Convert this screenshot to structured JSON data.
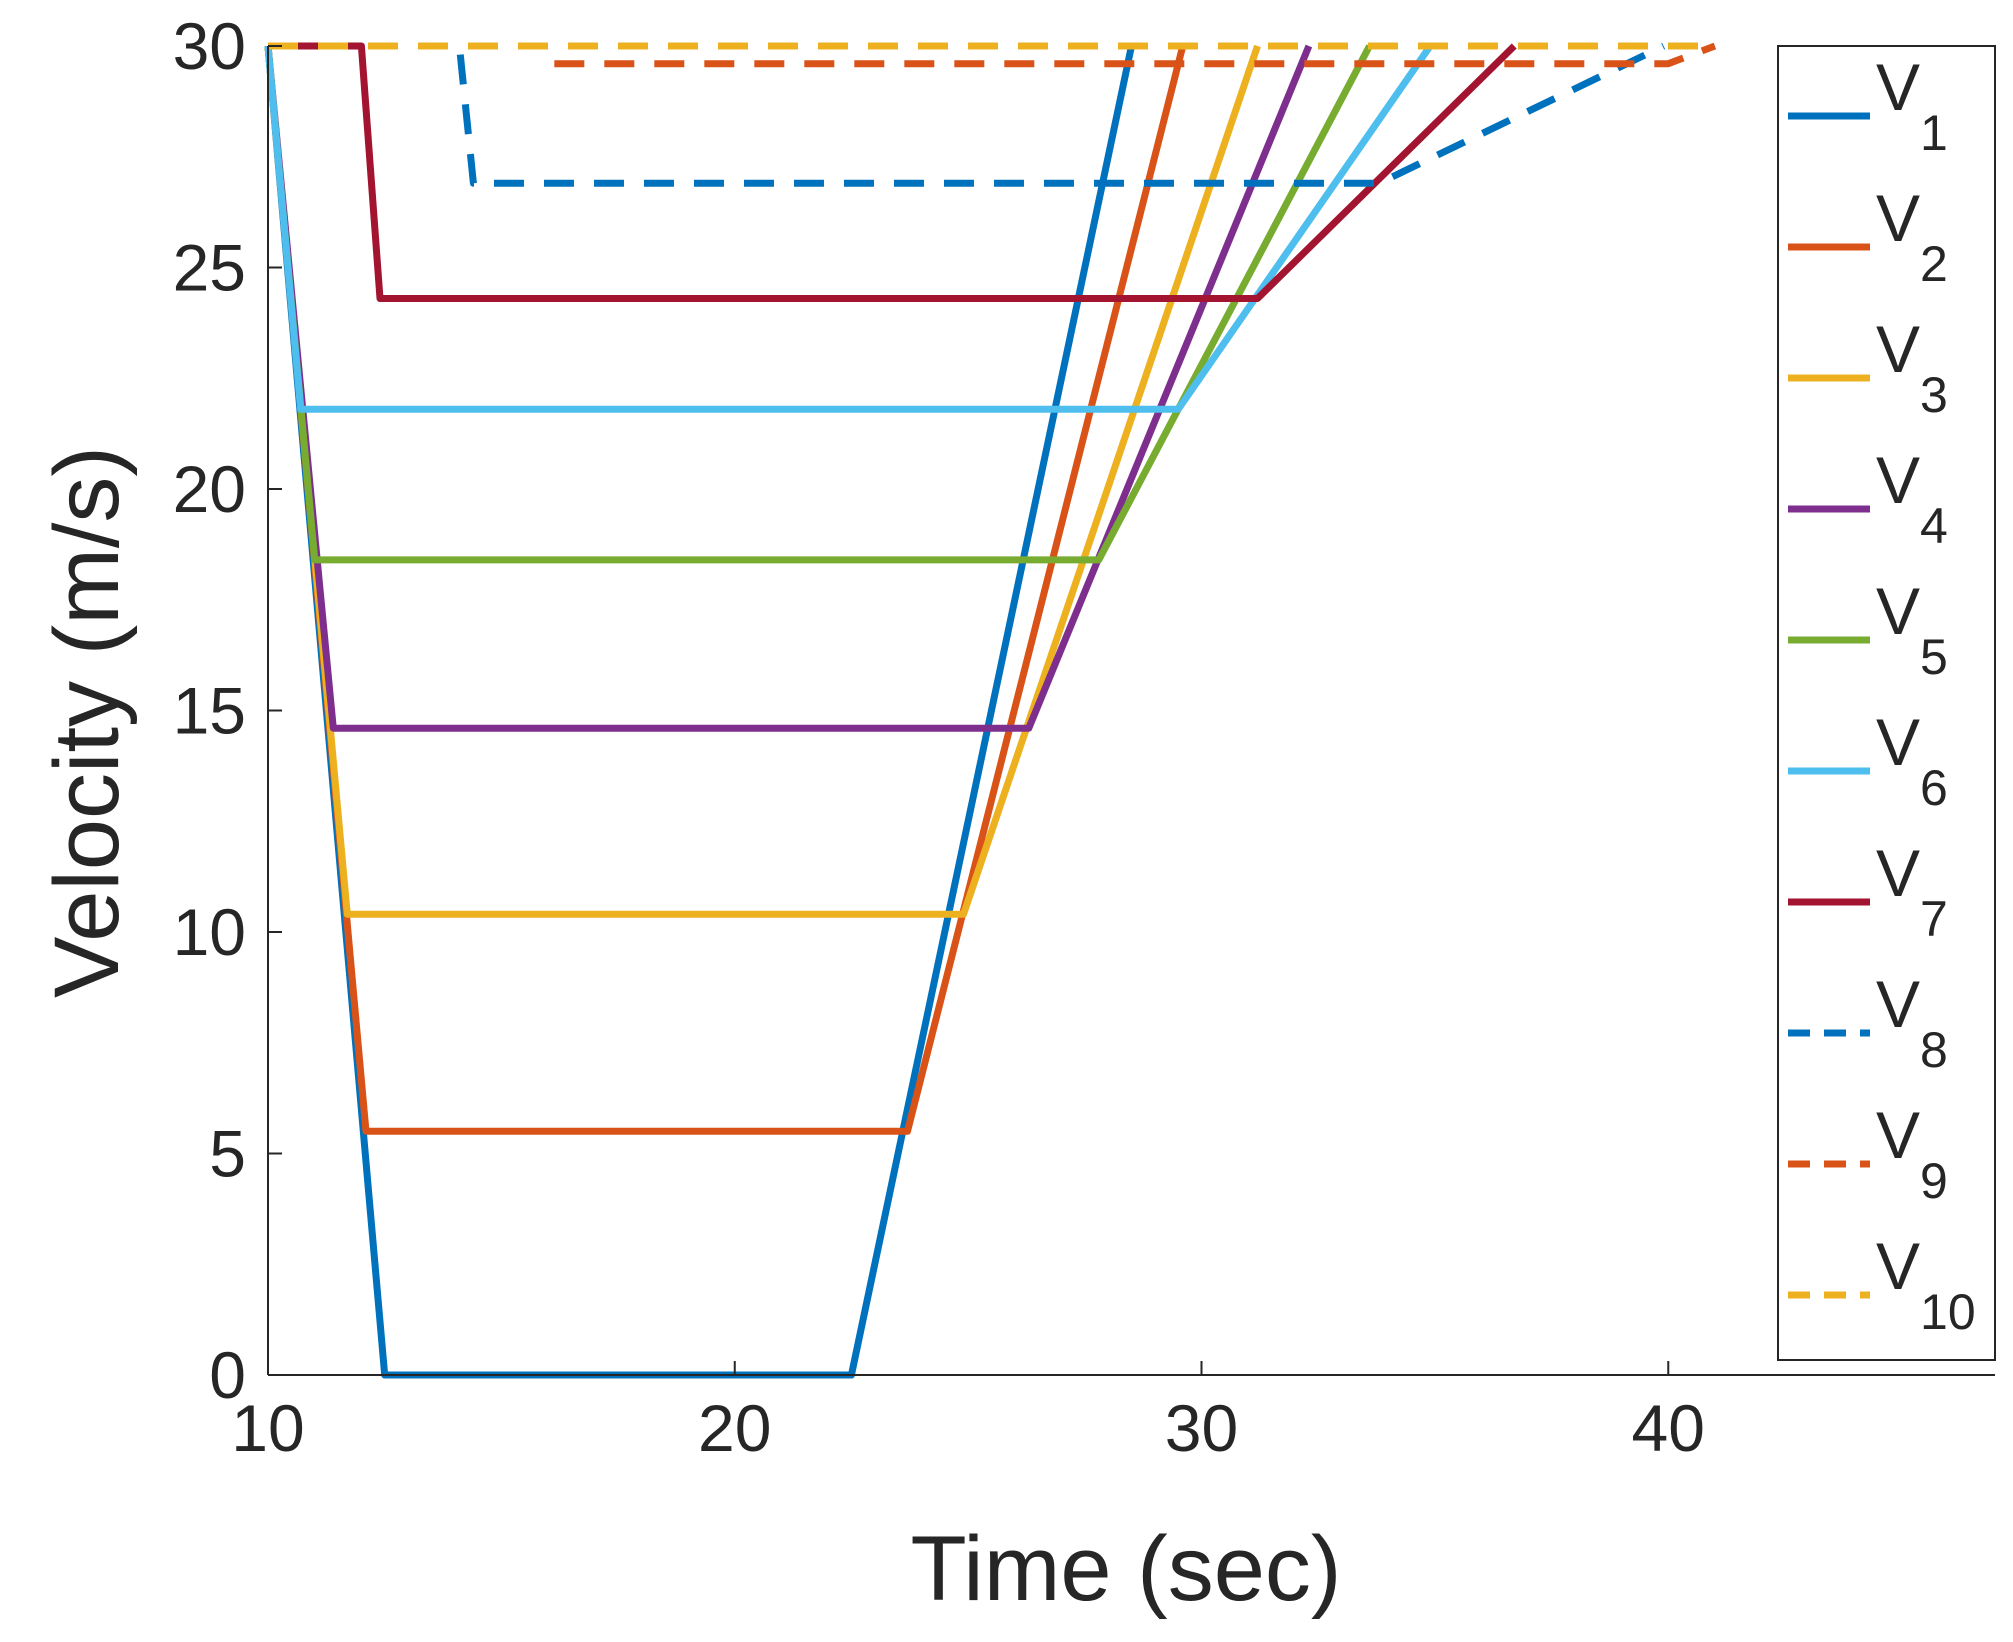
{
  "chart_data": {
    "type": "line",
    "title": "",
    "xlabel": "Time (sec)",
    "ylabel": "Velocity (m/s)",
    "xlim": [
      10,
      47
    ],
    "ylim": [
      0,
      30
    ],
    "xticks": [
      10,
      20,
      30,
      40
    ],
    "yticks": [
      0,
      5,
      10,
      15,
      20,
      25,
      30
    ],
    "legend_location": "top-right",
    "series": [
      {
        "name": "V",
        "sub": "1",
        "color": "#0072BD",
        "dashed": false,
        "x": [
          10,
          12.5,
          22.5,
          28.5
        ],
        "y": [
          30,
          0,
          0,
          30
        ]
      },
      {
        "name": "V",
        "sub": "2",
        "color": "#D95319",
        "dashed": false,
        "x": [
          10,
          12.1,
          23.7,
          29.6
        ],
        "y": [
          30,
          5.5,
          5.5,
          30
        ]
      },
      {
        "name": "V",
        "sub": "3",
        "color": "#EDB120",
        "dashed": false,
        "x": [
          10,
          11.7,
          24.9,
          31.2
        ],
        "y": [
          30,
          10.4,
          10.4,
          30
        ]
      },
      {
        "name": "V",
        "sub": "4",
        "color": "#7E2F8E",
        "dashed": false,
        "x": [
          10,
          11.4,
          26.3,
          32.3
        ],
        "y": [
          30,
          14.6,
          14.6,
          30
        ]
      },
      {
        "name": "V",
        "sub": "5",
        "color": "#77AC30",
        "dashed": false,
        "x": [
          10,
          11.0,
          27.8,
          33.6
        ],
        "y": [
          30,
          18.4,
          18.4,
          30
        ]
      },
      {
        "name": "V",
        "sub": "6",
        "color": "#4DBEEE",
        "dashed": false,
        "x": [
          10,
          10.7,
          29.5,
          34.9
        ],
        "y": [
          30,
          21.8,
          21.8,
          30
        ]
      },
      {
        "name": "V",
        "sub": "7",
        "color": "#A2142F",
        "dashed": false,
        "x": [
          10,
          12.0,
          12.4,
          31.2,
          36.7
        ],
        "y": [
          30,
          30,
          24.3,
          24.3,
          30
        ]
      },
      {
        "name": "V",
        "sub": "8",
        "color": "#0072BD",
        "dashed": true,
        "x": [
          10,
          14.1,
          14.4,
          33.8,
          39.9
        ],
        "y": [
          30,
          30,
          26.9,
          26.9,
          30
        ]
      },
      {
        "name": "V",
        "sub": "9",
        "color": "#D95319",
        "dashed": true,
        "x": [
          10,
          16.0,
          16.1,
          40.0,
          41.0
        ],
        "y": [
          30,
          30,
          29.6,
          29.6,
          30
        ]
      },
      {
        "name": "V",
        "sub": "10",
        "color": "#EDB120",
        "dashed": true,
        "x": [
          10,
          41.0
        ],
        "y": [
          30,
          30
        ]
      }
    ]
  }
}
